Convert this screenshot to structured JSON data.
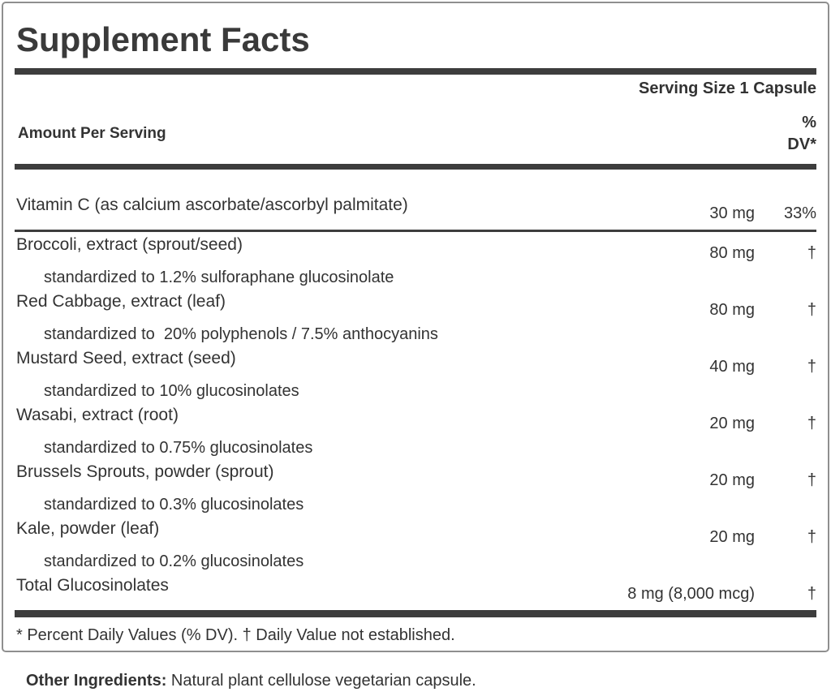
{
  "label": {
    "title": "Supplement Facts",
    "serving_size": "Serving Size 1 Capsule",
    "header": {
      "amount_col": "Amount Per Serving",
      "dv_line1": "%",
      "dv_line2": "DV*"
    },
    "rows": [
      {
        "name": "Vitamin C (as calcium ascorbate/ascorbyl palmitate)",
        "amount": "30 mg",
        "dv": "33%",
        "sub": "",
        "divider_after": true
      },
      {
        "name": "Broccoli, extract (sprout/seed)",
        "amount": "80 mg",
        "dv": "†",
        "sub": "standardized to 1.2% sulforaphane glucosinolate"
      },
      {
        "name": "Red Cabbage, extract (leaf)",
        "amount": "80 mg",
        "dv": "†",
        "sub": "standardized to  20% polyphenols / 7.5% anthocyanins"
      },
      {
        "name": "Mustard Seed, extract (seed)",
        "amount": "40 mg",
        "dv": "†",
        "sub": "standardized to 10% glucosinolates"
      },
      {
        "name": "Wasabi, extract (root)",
        "amount": "20 mg",
        "dv": "†",
        "sub": "standardized to 0.75% glucosinolates"
      },
      {
        "name": "Brussels Sprouts, powder (sprout)",
        "amount": "20 mg",
        "dv": "†",
        "sub": "standardized to 0.3% glucosinolates"
      },
      {
        "name": "Kale, powder (leaf)",
        "amount": "20 mg",
        "dv": "†",
        "sub": "standardized to 0.2% glucosinolates"
      },
      {
        "name": "Total Glucosinolates",
        "amount": "8 mg (8,000 mcg)",
        "dv": "†",
        "sub": ""
      }
    ],
    "footnote": "* Percent Daily Values (% DV). † Daily Value not established.",
    "other_ingredients_label": "Other Ingredients:",
    "other_ingredients_text": " Natural plant cellulose vegetarian capsule.",
    "colors": {
      "text": "#333333",
      "rule": "#3d3d3d",
      "border": "#8f8f8f"
    }
  }
}
